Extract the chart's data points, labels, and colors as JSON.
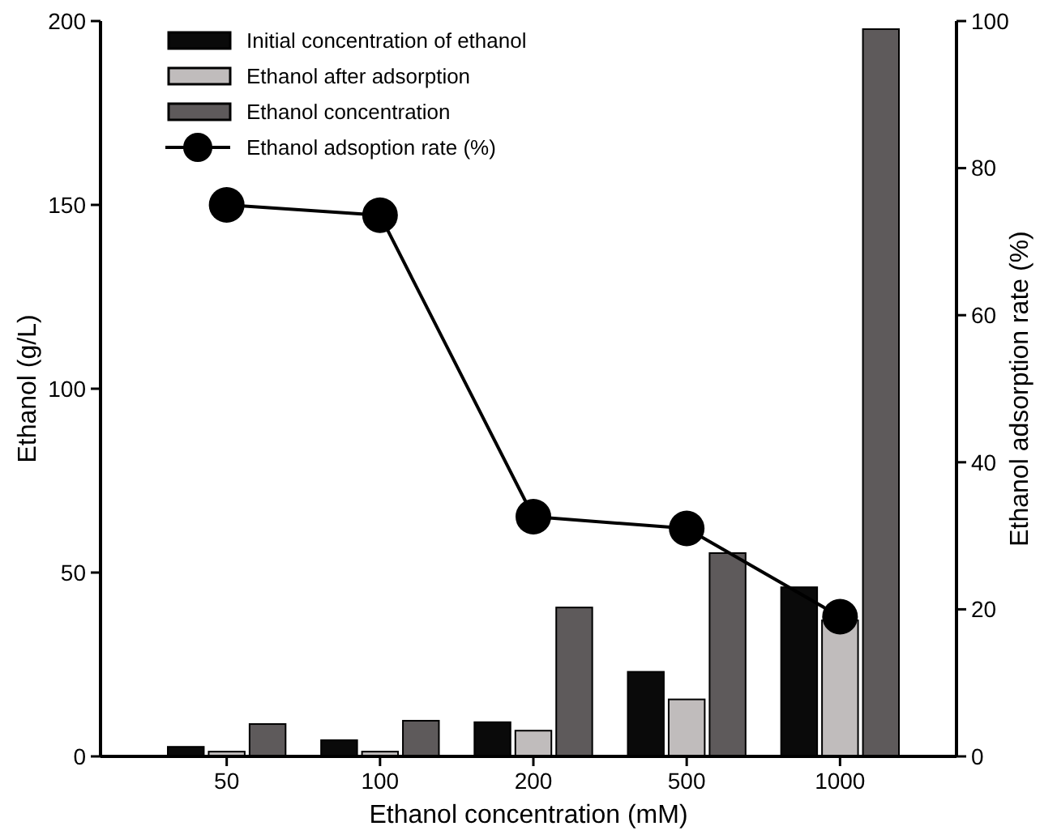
{
  "chart_data": {
    "type": "bar",
    "xlabel": "Ethanol concentration (mM)",
    "ylabel": "Ethanol (g/L)",
    "y2label": "Ethanol adsorption rate (%)",
    "categories": [
      "50",
      "100",
      "200",
      "500",
      "1000"
    ],
    "series": [
      {
        "name": "Initial concentration of ethanol",
        "color": "#0a0a0a",
        "values": [
          2.6,
          4.4,
          9.3,
          23,
          46
        ]
      },
      {
        "name": "Ethanol after adsorption",
        "color": "#c0bcbc",
        "values": [
          1.3,
          1.3,
          7,
          15.5,
          37
        ]
      },
      {
        "name": "Ethanol concentration",
        "color": "#5e5a5b",
        "values": [
          8.8,
          9.7,
          40.5,
          55.3,
          197.8
        ]
      },
      {
        "name": "Ethanol adsoption rate (%)",
        "type": "line",
        "axis": "y2",
        "color": "#000000",
        "marker": "circle",
        "values": [
          75,
          73.6,
          32.6,
          31,
          19
        ]
      }
    ],
    "ylim": [
      0,
      200
    ],
    "yticks": [
      0,
      50,
      100,
      150,
      200
    ],
    "y2lim": [
      0,
      100
    ],
    "y2ticks": [
      0,
      20,
      40,
      60,
      80,
      100
    ],
    "grid": false,
    "legend": "top left"
  }
}
